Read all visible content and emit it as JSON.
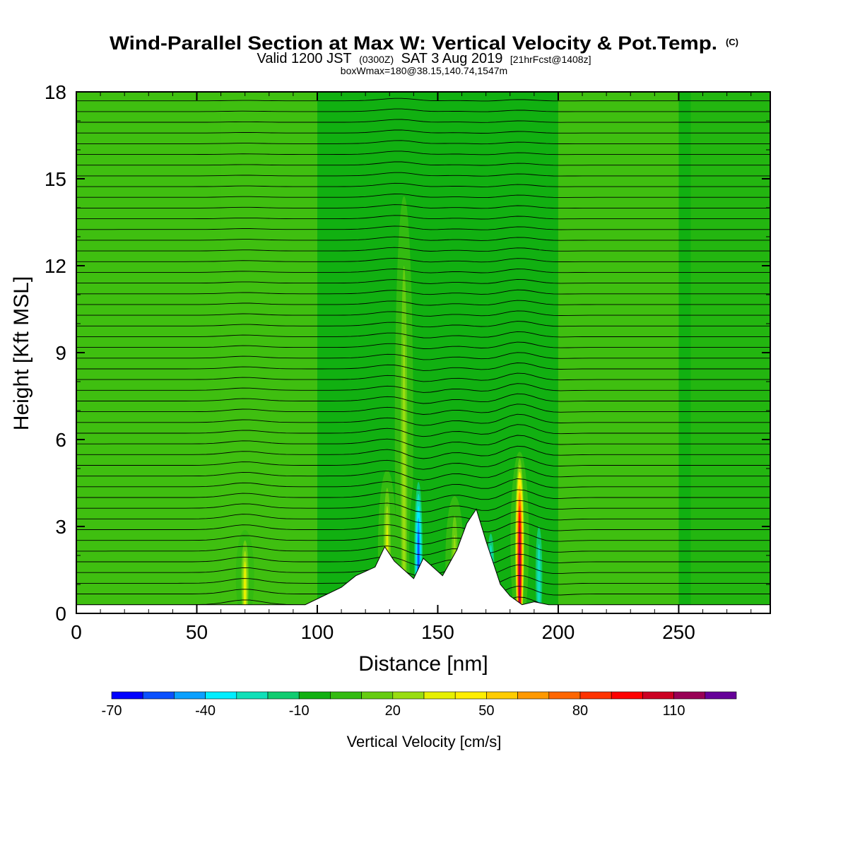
{
  "title": {
    "main": "Wind-Parallel Section at Max W: Vertical Velocity & Pot.Temp.",
    "copyright": "(C)",
    "valid_prefix": "Valid 1200 JST",
    "valid_utc": "(0300Z)",
    "valid_date": "SAT 3 Aug 2019",
    "forecast": "[21hrFcst@1408z]",
    "box": "boxWmax=180@38.15,140.74,1547m"
  },
  "chart_data": {
    "type": "heatmap",
    "title": "Wind-Parallel Section at Max W: Vertical Velocity & Pot.Temp.",
    "xlabel": "Distance [nm]",
    "ylabel": "Height [Kft MSL]",
    "xlim": [
      0,
      288
    ],
    "ylim": [
      0,
      18
    ],
    "x_ticks": [
      0,
      50,
      100,
      150,
      200,
      250
    ],
    "x_tick_labels": [
      "0",
      "50",
      "100",
      "150",
      "200",
      "250"
    ],
    "y_ticks": [
      0,
      3,
      6,
      9,
      12,
      15,
      18
    ],
    "y_tick_labels": [
      "0",
      "3",
      "6",
      "9",
      "12",
      "15",
      "18"
    ],
    "background_value_cm_s": 0,
    "updraft_max": {
      "x_nm": 184,
      "value_cm_s": 120,
      "height_top_kft": 6
    },
    "features": [
      {
        "x_nm": 70,
        "value_cm_s": 40,
        "height_top_kft": 3.2,
        "kind": "updraft"
      },
      {
        "x_nm": 129,
        "value_cm_s": 35,
        "height_top_kft": 5.5,
        "kind": "updraft"
      },
      {
        "x_nm": 136,
        "value_cm_s": 30,
        "height_top_kft": 16,
        "kind": "updraft"
      },
      {
        "x_nm": 142,
        "value_cm_s": -60,
        "height_top_kft": 5.5,
        "kind": "downdraft"
      },
      {
        "x_nm": 157,
        "value_cm_s": 30,
        "height_top_kft": 4.5,
        "kind": "updraft"
      },
      {
        "x_nm": 172,
        "value_cm_s": -40,
        "height_top_kft": 3.5,
        "kind": "downdraft"
      },
      {
        "x_nm": 184,
        "value_cm_s": 120,
        "height_top_kft": 6.2,
        "kind": "updraft"
      },
      {
        "x_nm": 192,
        "value_cm_s": -30,
        "height_top_kft": 4,
        "kind": "downdraft"
      }
    ],
    "terrain_kft": {
      "x": [
        0,
        95,
        100,
        110,
        116,
        124,
        128,
        132,
        140,
        144,
        152,
        158,
        162,
        166,
        170,
        176,
        180,
        185,
        190,
        196,
        288
      ],
      "y": [
        0.3,
        0.3,
        0.5,
        0.9,
        1.3,
        1.6,
        2.3,
        1.8,
        1.2,
        1.9,
        1.3,
        2.2,
        3.1,
        3.6,
        2.5,
        1.0,
        0.6,
        0.3,
        0.4,
        0.3,
        0.3
      ]
    },
    "isentrope_count": 50,
    "colorbar": {
      "title": "Vertical Velocity [cm/s]",
      "levels": [
        -70,
        -60,
        -50,
        -40,
        -30,
        -20,
        -10,
        0,
        10,
        20,
        30,
        40,
        50,
        60,
        70,
        80,
        90,
        100,
        110,
        120,
        130
      ],
      "labels": [
        "-70",
        "-40",
        "-10",
        "20",
        "50",
        "80",
        "110"
      ],
      "colors": [
        "#0000ff",
        "#0a50ff",
        "#0aa0ff",
        "#00eeff",
        "#10e0b8",
        "#10cc70",
        "#11b011",
        "#33bb11",
        "#66cc11",
        "#99dd11",
        "#e6f000",
        "#ffee00",
        "#ffcc00",
        "#ff9900",
        "#ff6600",
        "#ff3300",
        "#ff0000",
        "#cc0022",
        "#990055",
        "#660099"
      ]
    },
    "grid": false,
    "legend": "bottom"
  }
}
